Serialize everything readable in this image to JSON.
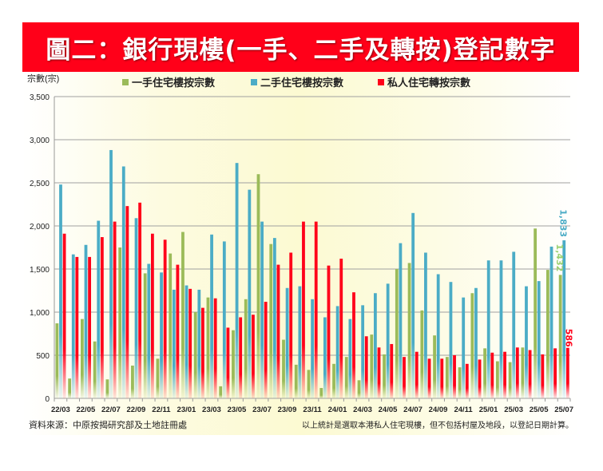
{
  "title": "圖二：銀行現樓(一手、二手及轉按)登記數字",
  "footer": {
    "source": "資料來源：中原按揭研究部及土地註冊處",
    "note": "以上統計是選取本港私人住宅現樓，但不包括村屋及地段，以登記日期計算。"
  },
  "chart_data": {
    "type": "bar",
    "title": "",
    "ylabel": "宗數(宗)",
    "xlabel": "",
    "ylim": [
      0,
      3500
    ],
    "yticks": [
      0,
      500,
      1000,
      1500,
      2000,
      2500,
      3000,
      3500
    ],
    "ytick_labels": [
      "0",
      "500",
      "1,000",
      "1,500",
      "2,000",
      "2,500",
      "3,000",
      "3,500"
    ],
    "grid": true,
    "legend_position": "top",
    "categories": [
      "22/03",
      "22/04",
      "22/05",
      "22/06",
      "22/07",
      "22/08",
      "22/09",
      "22/10",
      "22/11",
      "22/12",
      "23/01",
      "23/02",
      "23/03",
      "23/04",
      "23/05",
      "23/06",
      "23/07",
      "23/08",
      "23/09",
      "23/10",
      "23/11",
      "23/12",
      "24/01",
      "24/02",
      "24/03",
      "24/04",
      "24/05",
      "24/06",
      "24/07",
      "24/08",
      "24/09",
      "24/10",
      "24/11",
      "24/12",
      "25/01",
      "25/02",
      "25/03",
      "25/04",
      "25/05",
      "25/06",
      "25/07"
    ],
    "x_tick_labels": [
      "22/03",
      "22/05",
      "22/07",
      "22/09",
      "22/11",
      "23/01",
      "23/03",
      "23/05",
      "23/07",
      "23/09",
      "23/11",
      "24/01",
      "24/03",
      "24/05",
      "24/07",
      "24/09",
      "24/11",
      "25/01",
      "25/03",
      "25/05",
      "25/07"
    ],
    "series": [
      {
        "name": "一手住宅樓按宗數",
        "color": "#9bbb59",
        "values": [
          870,
          230,
          920,
          660,
          220,
          1750,
          380,
          1450,
          460,
          1680,
          1930,
          1000,
          1170,
          140,
          790,
          1150,
          2600,
          1790,
          680,
          390,
          330,
          120,
          400,
          480,
          210,
          740,
          510,
          1500,
          1570,
          1020,
          730,
          480,
          360,
          1220,
          580,
          430,
          420,
          590,
          1970,
          1490,
          1432
        ],
        "last_label": "1,432"
      },
      {
        "name": "二手住宅樓按宗數",
        "color": "#4bacc6",
        "values": [
          2480,
          1670,
          1780,
          2060,
          2880,
          2690,
          2090,
          1560,
          1460,
          1260,
          1310,
          1260,
          1900,
          1820,
          2730,
          2420,
          2050,
          1860,
          1280,
          1300,
          1150,
          940,
          1070,
          920,
          1080,
          1220,
          1330,
          1800,
          2150,
          1690,
          1440,
          1350,
          1170,
          1280,
          1600,
          1600,
          1700,
          1300,
          1360,
          1760,
          1833
        ],
        "last_label": "1,833"
      },
      {
        "name": "私人住宅轉按宗數",
        "color": "#ff0019",
        "values": [
          1910,
          1640,
          1640,
          1870,
          2050,
          2230,
          2270,
          1910,
          1840,
          1550,
          1270,
          1050,
          1160,
          820,
          940,
          970,
          1120,
          1550,
          1690,
          2050,
          2050,
          1540,
          1620,
          1230,
          720,
          590,
          630,
          480,
          540,
          460,
          460,
          500,
          400,
          450,
          530,
          540,
          590,
          560,
          510,
          580,
          586
        ],
        "last_label": "586"
      }
    ]
  }
}
